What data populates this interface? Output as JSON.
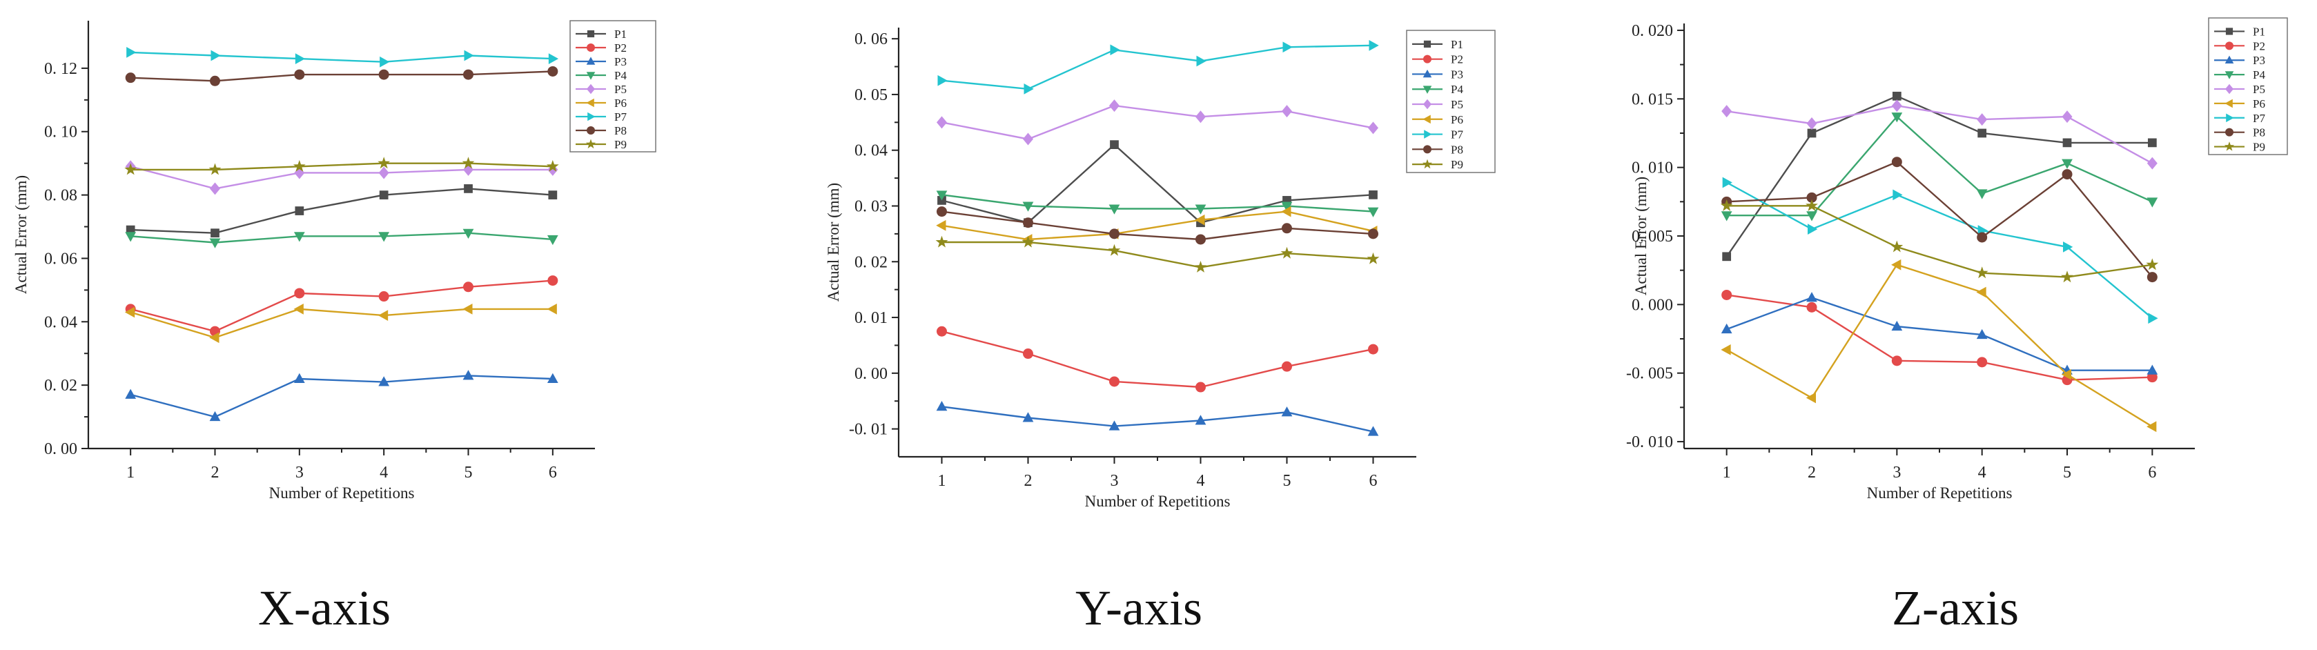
{
  "chart_data": [
    {
      "type": "line",
      "caption": "X-axis",
      "xlabel": "Number of Repetitions",
      "ylabel": "Actual Error (mm)",
      "x": [
        1,
        2,
        3,
        4,
        5,
        6
      ],
      "xlim": [
        0.5,
        6.5
      ],
      "ylim": [
        0.0,
        0.135
      ],
      "yticks": [
        0.0,
        0.02,
        0.04,
        0.06,
        0.08,
        0.1,
        0.12
      ],
      "ytick_labels": [
        "0. 00",
        "0. 02",
        "0. 04",
        "0. 06",
        "0. 08",
        "0. 10",
        "0. 12"
      ],
      "legend_position": "top-right",
      "series": [
        {
          "name": "P1",
          "values": [
            0.069,
            0.068,
            0.075,
            0.08,
            0.082,
            0.08
          ]
        },
        {
          "name": "P2",
          "values": [
            0.044,
            0.037,
            0.049,
            0.048,
            0.051,
            0.053
          ]
        },
        {
          "name": "P3",
          "values": [
            0.017,
            0.01,
            0.022,
            0.021,
            0.023,
            0.022
          ]
        },
        {
          "name": "P4",
          "values": [
            0.067,
            0.065,
            0.067,
            0.067,
            0.068,
            0.066
          ]
        },
        {
          "name": "P5",
          "values": [
            0.089,
            0.082,
            0.087,
            0.087,
            0.088,
            0.088
          ]
        },
        {
          "name": "P6",
          "values": [
            0.043,
            0.035,
            0.044,
            0.042,
            0.044,
            0.044
          ]
        },
        {
          "name": "P7",
          "values": [
            0.125,
            0.124,
            0.123,
            0.122,
            0.124,
            0.123
          ]
        },
        {
          "name": "P8",
          "values": [
            0.117,
            0.116,
            0.118,
            0.118,
            0.118,
            0.119
          ]
        },
        {
          "name": "P9",
          "values": [
            0.088,
            0.088,
            0.089,
            0.09,
            0.09,
            0.089
          ]
        }
      ]
    },
    {
      "type": "line",
      "caption": "Y-axis",
      "xlabel": "Number of Repetitions",
      "ylabel": "Actual Error (mm)",
      "x": [
        1,
        2,
        3,
        4,
        5,
        6
      ],
      "xlim": [
        0.5,
        6.5
      ],
      "ylim": [
        -0.015,
        0.062
      ],
      "yticks": [
        -0.01,
        0.0,
        0.01,
        0.02,
        0.03,
        0.04,
        0.05,
        0.06
      ],
      "ytick_labels": [
        "-0. 01",
        "0. 00",
        "0. 01",
        "0. 02",
        "0. 03",
        "0. 04",
        "0. 05",
        "0. 06"
      ],
      "legend_position": "top-right",
      "series": [
        {
          "name": "P1",
          "values": [
            0.031,
            0.027,
            0.041,
            0.027,
            0.031,
            0.032
          ]
        },
        {
          "name": "P2",
          "values": [
            0.0075,
            0.0035,
            -0.0015,
            -0.0025,
            0.0012,
            0.0043
          ]
        },
        {
          "name": "P3",
          "values": [
            -0.006,
            -0.008,
            -0.0095,
            -0.0085,
            -0.007,
            -0.0105
          ]
        },
        {
          "name": "P4",
          "values": [
            0.032,
            0.03,
            0.0295,
            0.0295,
            0.03,
            0.029
          ]
        },
        {
          "name": "P5",
          "values": [
            0.045,
            0.042,
            0.048,
            0.046,
            0.047,
            0.044
          ]
        },
        {
          "name": "P6",
          "values": [
            0.0265,
            0.024,
            0.025,
            0.0275,
            0.029,
            0.0255
          ]
        },
        {
          "name": "P7",
          "values": [
            0.0525,
            0.051,
            0.058,
            0.056,
            0.0585,
            0.0588
          ]
        },
        {
          "name": "P8",
          "values": [
            0.029,
            0.027,
            0.025,
            0.024,
            0.026,
            0.025
          ]
        },
        {
          "name": "P9",
          "values": [
            0.0235,
            0.0235,
            0.022,
            0.019,
            0.0215,
            0.0205
          ]
        }
      ]
    },
    {
      "type": "line",
      "caption": "Z-axis",
      "xlabel": "Number of Repetitions",
      "ylabel": "Actual Error (mm)",
      "x": [
        1,
        2,
        3,
        4,
        5,
        6
      ],
      "xlim": [
        0.5,
        6.5
      ],
      "ylim": [
        -0.0105,
        0.0205
      ],
      "yticks": [
        -0.01,
        -0.005,
        0.0,
        0.005,
        0.01,
        0.015,
        0.02
      ],
      "ytick_labels": [
        "-0. 010",
        "-0. 005",
        "0. 000",
        "0. 005",
        "0. 010",
        "0. 015",
        "0. 020"
      ],
      "legend_position": "top-right",
      "series": [
        {
          "name": "P1",
          "values": [
            0.0035,
            0.0125,
            0.0152,
            0.0125,
            0.0118,
            0.0118
          ]
        },
        {
          "name": "P2",
          "values": [
            0.0007,
            -0.0002,
            -0.0041,
            -0.0042,
            -0.0055,
            -0.0053
          ]
        },
        {
          "name": "P3",
          "values": [
            -0.0018,
            0.0005,
            -0.0016,
            -0.0022,
            -0.0048,
            -0.0048
          ]
        },
        {
          "name": "P4",
          "values": [
            0.0065,
            0.0065,
            0.0137,
            0.0081,
            0.0103,
            0.0075
          ]
        },
        {
          "name": "P5",
          "values": [
            0.0141,
            0.0132,
            0.0145,
            0.0135,
            0.0137,
            0.0103
          ]
        },
        {
          "name": "P6",
          "values": [
            -0.0033,
            -0.0068,
            0.0029,
            0.0009,
            -0.0051,
            -0.0089
          ]
        },
        {
          "name": "P7",
          "values": [
            0.0089,
            0.0055,
            0.008,
            0.0054,
            0.0042,
            -0.001
          ]
        },
        {
          "name": "P8",
          "values": [
            0.0075,
            0.0078,
            0.0104,
            0.0049,
            0.0095,
            0.002
          ]
        },
        {
          "name": "P9",
          "values": [
            0.0072,
            0.0072,
            0.0042,
            0.0023,
            0.002,
            0.0029
          ]
        }
      ]
    }
  ],
  "legend_styles": [
    {
      "name": "P1",
      "color": "#4d4d4d",
      "marker": "square"
    },
    {
      "name": "P2",
      "color": "#e34a4a",
      "marker": "circle"
    },
    {
      "name": "P3",
      "color": "#2f6fbf",
      "marker": "triangle-up"
    },
    {
      "name": "P4",
      "color": "#3aa66f",
      "marker": "triangle-down"
    },
    {
      "name": "P5",
      "color": "#c48ee6",
      "marker": "diamond"
    },
    {
      "name": "P6",
      "color": "#d4a21f",
      "marker": "triangle-left"
    },
    {
      "name": "P7",
      "color": "#23c4cf",
      "marker": "triangle-right"
    },
    {
      "name": "P8",
      "color": "#6b4035",
      "marker": "circle"
    },
    {
      "name": "P9",
      "color": "#8f8a1c",
      "marker": "star"
    }
  ]
}
